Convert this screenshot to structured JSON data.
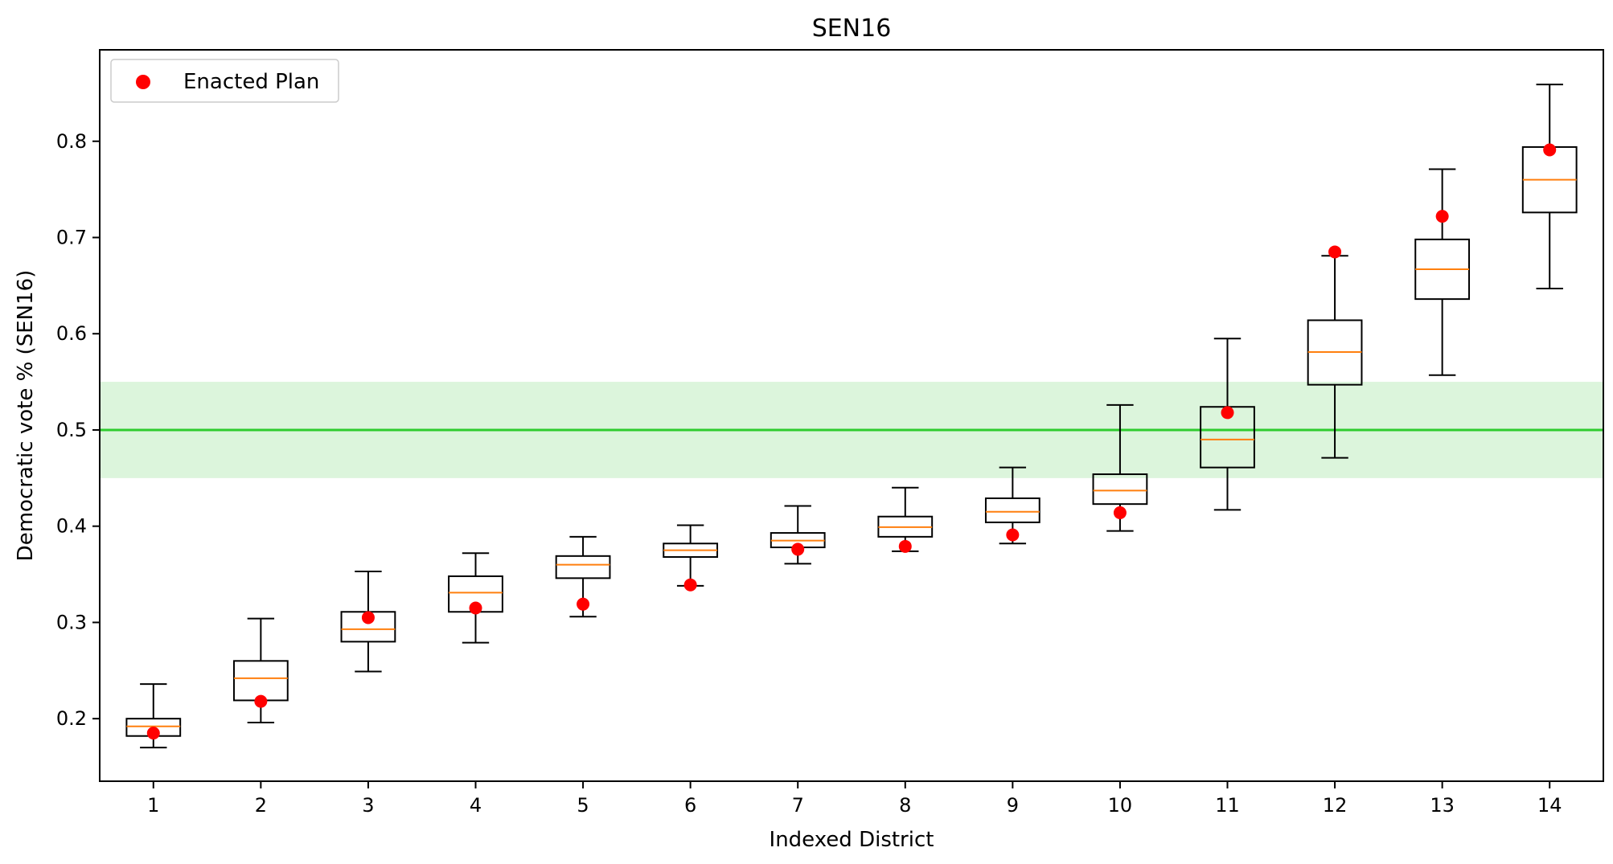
{
  "chart_data": {
    "type": "box",
    "title": "SEN16",
    "xlabel": "Indexed District",
    "ylabel": "Democratic vote % (SEN16)",
    "ylim": [
      0.135,
      0.895
    ],
    "y_ticks": [
      0.2,
      0.3,
      0.4,
      0.5,
      0.6,
      0.7,
      0.8
    ],
    "y_tick_labels": [
      "0.2",
      "0.3",
      "0.4",
      "0.5",
      "0.6",
      "0.7",
      "0.8"
    ],
    "categories": [
      "1",
      "2",
      "3",
      "4",
      "5",
      "6",
      "7",
      "8",
      "9",
      "10",
      "11",
      "12",
      "13",
      "14"
    ],
    "boxes": [
      {
        "whislo": 0.17,
        "q1": 0.182,
        "med": 0.192,
        "q3": 0.2,
        "whishi": 0.236
      },
      {
        "whislo": 0.196,
        "q1": 0.219,
        "med": 0.242,
        "q3": 0.26,
        "whishi": 0.304
      },
      {
        "whislo": 0.249,
        "q1": 0.28,
        "med": 0.293,
        "q3": 0.311,
        "whishi": 0.353
      },
      {
        "whislo": 0.279,
        "q1": 0.311,
        "med": 0.331,
        "q3": 0.348,
        "whishi": 0.372
      },
      {
        "whislo": 0.306,
        "q1": 0.346,
        "med": 0.36,
        "q3": 0.369,
        "whishi": 0.389
      },
      {
        "whislo": 0.338,
        "q1": 0.368,
        "med": 0.375,
        "q3": 0.382,
        "whishi": 0.401
      },
      {
        "whislo": 0.361,
        "q1": 0.378,
        "med": 0.385,
        "q3": 0.393,
        "whishi": 0.421
      },
      {
        "whislo": 0.374,
        "q1": 0.389,
        "med": 0.399,
        "q3": 0.41,
        "whishi": 0.44
      },
      {
        "whislo": 0.382,
        "q1": 0.404,
        "med": 0.415,
        "q3": 0.429,
        "whishi": 0.461
      },
      {
        "whislo": 0.395,
        "q1": 0.423,
        "med": 0.437,
        "q3": 0.454,
        "whishi": 0.526
      },
      {
        "whislo": 0.417,
        "q1": 0.461,
        "med": 0.49,
        "q3": 0.524,
        "whishi": 0.595
      },
      {
        "whislo": 0.471,
        "q1": 0.547,
        "med": 0.581,
        "q3": 0.614,
        "whishi": 0.681
      },
      {
        "whislo": 0.557,
        "q1": 0.636,
        "med": 0.667,
        "q3": 0.698,
        "whishi": 0.771
      },
      {
        "whislo": 0.647,
        "q1": 0.726,
        "med": 0.76,
        "q3": 0.794,
        "whishi": 0.859
      }
    ],
    "series": [
      {
        "name": "Enacted Plan",
        "type": "scatter",
        "color": "#ff0000",
        "values": [
          0.185,
          0.218,
          0.305,
          0.315,
          0.319,
          0.339,
          0.376,
          0.379,
          0.391,
          0.414,
          0.518,
          0.685,
          0.722,
          0.791
        ]
      }
    ],
    "reference_line": {
      "y": 0.5,
      "color": "#2ecc2e"
    },
    "reference_band": {
      "y0": 0.45,
      "y1": 0.55,
      "color": "#c9f0c9"
    },
    "box_color": "#000000",
    "median_color": "#ff7f0e",
    "legend_position": "upper-left",
    "grid": false
  }
}
